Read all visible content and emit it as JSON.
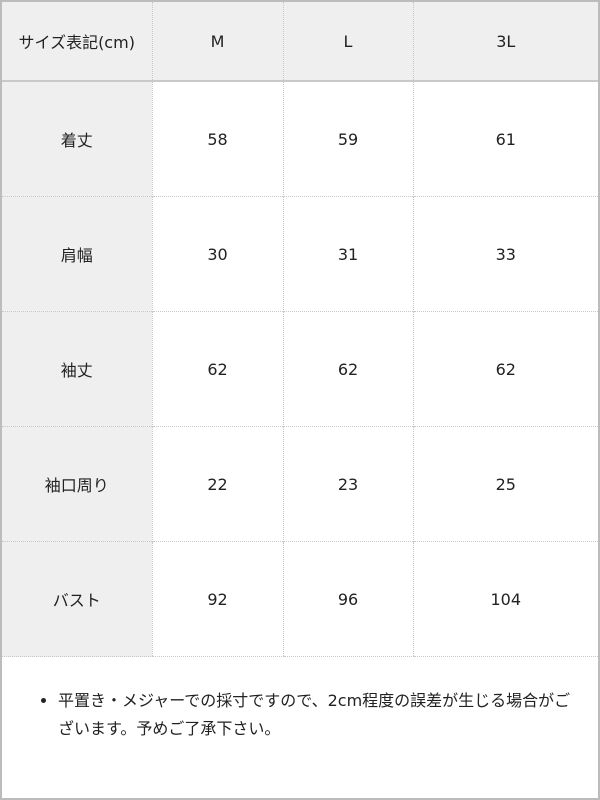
{
  "table": {
    "headers": [
      "サイズ表記(cm)",
      "M",
      "L",
      "3L"
    ],
    "rows": [
      {
        "label": "着丈",
        "values": [
          "58",
          "59",
          "61"
        ]
      },
      {
        "label": "肩幅",
        "values": [
          "30",
          "31",
          "33"
        ]
      },
      {
        "label": "袖丈",
        "values": [
          "62",
          "62",
          "62"
        ]
      },
      {
        "label": "袖口周り",
        "values": [
          "22",
          "23",
          "25"
        ]
      },
      {
        "label": "バスト",
        "values": [
          "92",
          "96",
          "104"
        ]
      }
    ]
  },
  "note": {
    "items": [
      "平置き・メジャーでの採寸ですので、2cm程度の誤差が生じる場合がございます。予めご了承下さい。"
    ]
  }
}
